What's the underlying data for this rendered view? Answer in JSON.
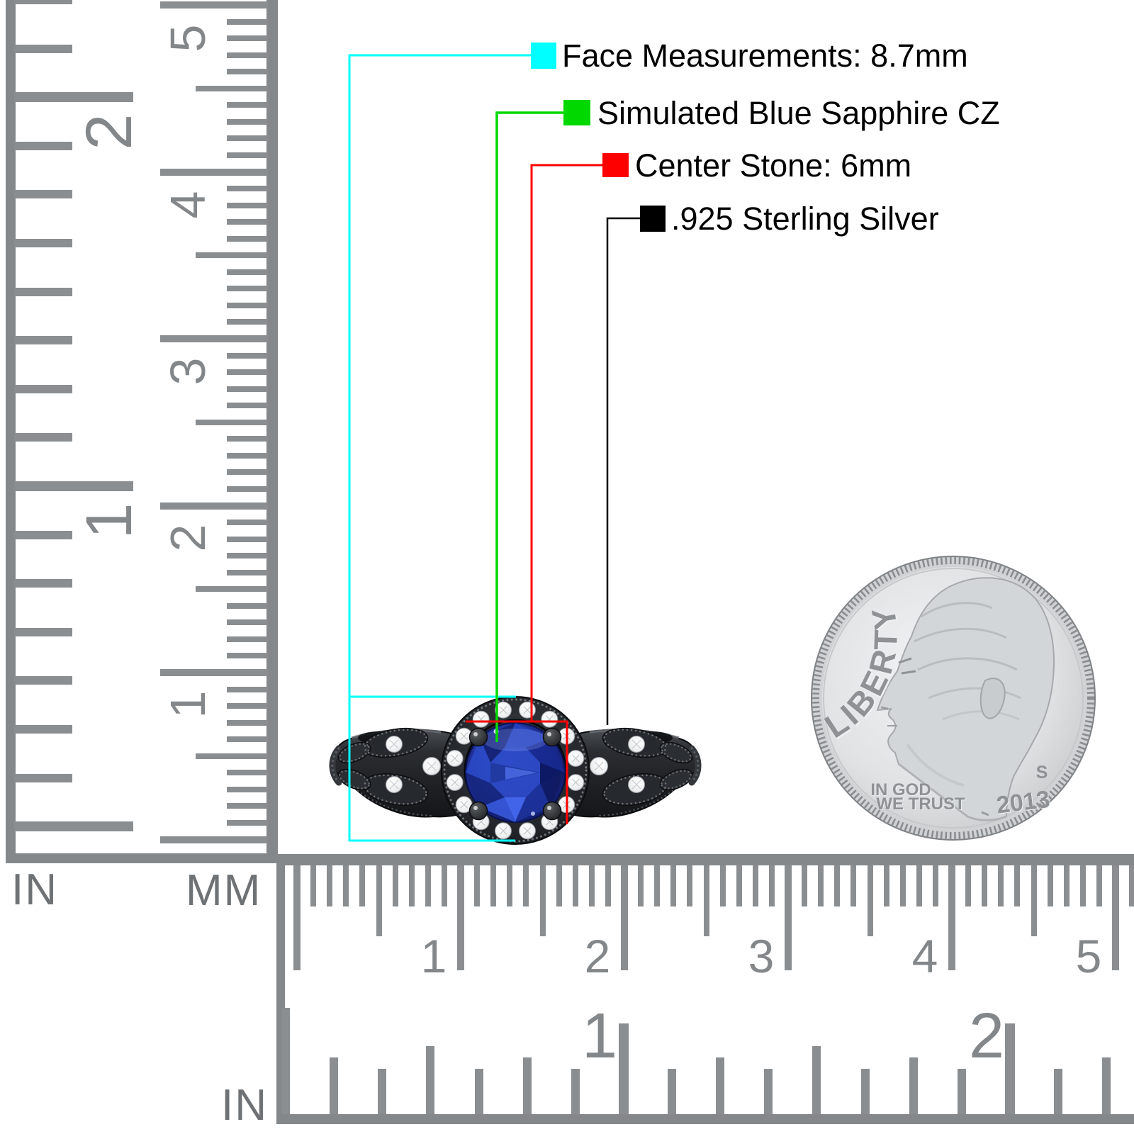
{
  "legend": {
    "items": [
      {
        "id": "face-measurements",
        "swatch_color": "#00FFFF",
        "label": "Face Measurements: 8.7mm"
      },
      {
        "id": "stone-type",
        "swatch_color": "#00D800",
        "label": "Simulated Blue Sapphire CZ"
      },
      {
        "id": "center-stone",
        "swatch_color": "#FF0000",
        "label": "Center Stone: 6mm"
      },
      {
        "id": "metal",
        "swatch_color": "#000000",
        "label": ".925 Sterling Silver"
      }
    ]
  },
  "rulers": {
    "left_inch": {
      "unit": "IN",
      "numbers": [
        "2",
        "1"
      ]
    },
    "left_mm": {
      "unit": "MM",
      "numbers": [
        "5",
        "4",
        "3",
        "2",
        "1"
      ]
    },
    "bottom_mm": {
      "numbers": [
        "1",
        "2",
        "3",
        "4",
        "5"
      ]
    },
    "bottom_inch": {
      "unit": "IN",
      "numbers": [
        "1",
        "2"
      ]
    }
  },
  "coin": {
    "liberty": "LIBERTY",
    "motto_line1": "IN GOD",
    "motto_line2": "WE TRUST",
    "mint_mark": "S",
    "year": "2013"
  },
  "colors": {
    "annotation_cyan": "#00FFFF",
    "annotation_green": "#00D800",
    "annotation_red": "#FF0000",
    "annotation_black": "#000000",
    "ruler_gray": "#8B8E90",
    "ring_metal": "#1B1E21",
    "stone_blue": "#2239B0",
    "coin_silver": "#D7D9DB"
  }
}
